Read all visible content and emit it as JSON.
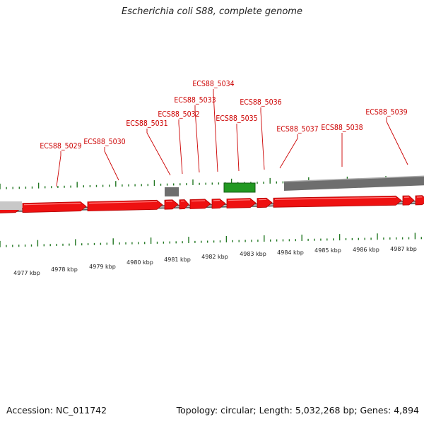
{
  "title": "Escherichia coli S88, complete genome",
  "accession_text": "Accession: NC_011742",
  "info_text": "Topology: circular; Length: 5,032,268 bp; Genes: 4,894",
  "colors": {
    "gene_red": "#ee1111",
    "gene_dark_red": "#b30000",
    "gray_feature": "#6e6e6e",
    "light_gray": "#c8c8c8",
    "green_feature": "#229922",
    "tick_green": "#227722",
    "label_red": "#cc0000"
  },
  "gene_labels": [
    "ECS88_5029",
    "ECS88_5030",
    "ECS88_5031",
    "ECS88_5032",
    "ECS88_5033",
    "ECS88_5034",
    "ECS88_5035",
    "ECS88_5036",
    "ECS88_5037",
    "ECS88_5038",
    "ECS88_5039"
  ],
  "scale_labels": [
    "4977 kbp",
    "4978 kbp",
    "4979 kbp",
    "4980 kbp",
    "4981 kbp",
    "4982 kbp",
    "4983 kbp",
    "4984 kbp",
    "4985 kbp",
    "4986 kbp",
    "4987 kbp"
  ]
}
